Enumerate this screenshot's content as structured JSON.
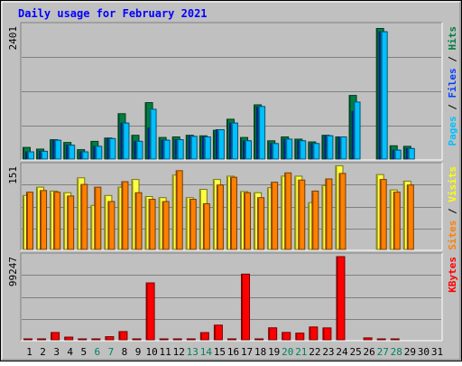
{
  "chart_data": [
    {
      "type": "bar",
      "title": "Daily usage for February 2021",
      "y_max_label": "2401",
      "ylim": [
        0,
        2401
      ],
      "grid": true,
      "side_label_parts": [
        {
          "text": "Pages",
          "color": "#00c0ff"
        },
        {
          "text": " / ",
          "color": "#000000"
        },
        {
          "text": "Files",
          "color": "#0040ff"
        },
        {
          "text": " / ",
          "color": "#000000"
        },
        {
          "text": "Hits",
          "color": "#008040"
        }
      ],
      "categories": [
        "1",
        "2",
        "3",
        "4",
        "5",
        "6",
        "7",
        "8",
        "9",
        "10",
        "11",
        "12",
        "13",
        "14",
        "15",
        "16",
        "17",
        "18",
        "19",
        "20",
        "21",
        "22",
        "23",
        "24",
        "25",
        "26",
        "27",
        "28",
        "29",
        "30",
        "31"
      ],
      "series": [
        {
          "name": "Hits",
          "color": "#008040",
          "values": [
            210,
            180,
            350,
            300,
            170,
            320,
            380,
            820,
            430,
            1020,
            390,
            400,
            430,
            420,
            520,
            720,
            390,
            980,
            330,
            400,
            360,
            310,
            430,
            400,
            1150,
            0,
            2360,
            240,
            230,
            0,
            0
          ]
        },
        {
          "name": "Files",
          "color": "#0040ff",
          "values": [
            130,
            140,
            340,
            250,
            130,
            230,
            370,
            650,
            320,
            560,
            340,
            350,
            410,
            400,
            530,
            650,
            330,
            940,
            280,
            360,
            330,
            280,
            420,
            400,
            860,
            0,
            2300,
            160,
            190,
            0,
            0
          ]
        },
        {
          "name": "Pages",
          "color": "#00c0ff",
          "values": [
            130,
            140,
            340,
            250,
            130,
            230,
            370,
            650,
            320,
            900,
            340,
            350,
            410,
            400,
            530,
            650,
            330,
            950,
            280,
            360,
            330,
            280,
            420,
            400,
            1030,
            0,
            2300,
            160,
            190,
            0,
            0
          ]
        }
      ]
    },
    {
      "type": "bar",
      "y_max_label": "151",
      "ylim": [
        0,
        151
      ],
      "grid": true,
      "side_label_parts": [
        {
          "text": "Sites",
          "color": "#ff8000"
        },
        {
          "text": " / ",
          "color": "#000000"
        },
        {
          "text": "Visits",
          "color": "#ffff00"
        }
      ],
      "categories": [
        "1",
        "2",
        "3",
        "4",
        "5",
        "6",
        "7",
        "8",
        "9",
        "10",
        "11",
        "12",
        "13",
        "14",
        "15",
        "16",
        "17",
        "18",
        "19",
        "20",
        "21",
        "22",
        "23",
        "24",
        "25",
        "26",
        "27",
        "28",
        "29",
        "30",
        "31"
      ],
      "series": [
        {
          "name": "Visits",
          "color": "#ffff40",
          "values": [
            98,
            113,
            106,
            103,
            130,
            80,
            98,
            113,
            127,
            96,
            94,
            135,
            94,
            109,
            127,
            133,
            105,
            103,
            112,
            133,
            133,
            85,
            116,
            152,
            0,
            0,
            136,
            108,
            124,
            0,
            0
          ]
        },
        {
          "name": "Sites",
          "color": "#ff8000",
          "values": [
            104,
            107,
            104,
            97,
            118,
            113,
            87,
            123,
            103,
            91,
            87,
            143,
            91,
            83,
            117,
            131,
            103,
            94,
            122,
            139,
            126,
            106,
            128,
            138,
            0,
            0,
            127,
            104,
            117,
            0,
            0
          ]
        }
      ]
    },
    {
      "type": "bar",
      "y_max_label": "99247",
      "ylim": [
        0,
        99247
      ],
      "grid": true,
      "side_label_parts": [
        {
          "text": "KBytes",
          "color": "#ff0000"
        }
      ],
      "categories": [
        "1",
        "2",
        "3",
        "4",
        "5",
        "6",
        "7",
        "8",
        "9",
        "10",
        "11",
        "12",
        "13",
        "14",
        "15",
        "16",
        "17",
        "18",
        "19",
        "20",
        "21",
        "22",
        "23",
        "24",
        "25",
        "26",
        "27",
        "28",
        "29",
        "30",
        "31"
      ],
      "series": [
        {
          "name": "KBytes",
          "color": "#ff0000",
          "values": [
            700,
            700,
            8700,
            3200,
            700,
            700,
            3700,
            9800,
            700,
            67900,
            700,
            700,
            700,
            8600,
            17500,
            700,
            78400,
            700,
            14300,
            8800,
            8000,
            15300,
            14200,
            99247,
            0,
            2300,
            700,
            700,
            0,
            0,
            0
          ]
        }
      ]
    }
  ],
  "x_axis": {
    "labels": [
      "1",
      "2",
      "3",
      "4",
      "5",
      "6",
      "7",
      "8",
      "9",
      "10",
      "11",
      "12",
      "13",
      "14",
      "15",
      "16",
      "17",
      "18",
      "19",
      "20",
      "21",
      "22",
      "23",
      "24",
      "25",
      "26",
      "27",
      "28",
      "29",
      "30",
      "31"
    ],
    "weekend_days": [
      "6",
      "7",
      "13",
      "14",
      "20",
      "21",
      "27",
      "28"
    ],
    "weekday_color": "#000000",
    "weekend_color": "#00805c"
  },
  "colors": {
    "background": "#c0c0c0",
    "plot_area": "#c0c0c0",
    "title": "#0000ff"
  }
}
